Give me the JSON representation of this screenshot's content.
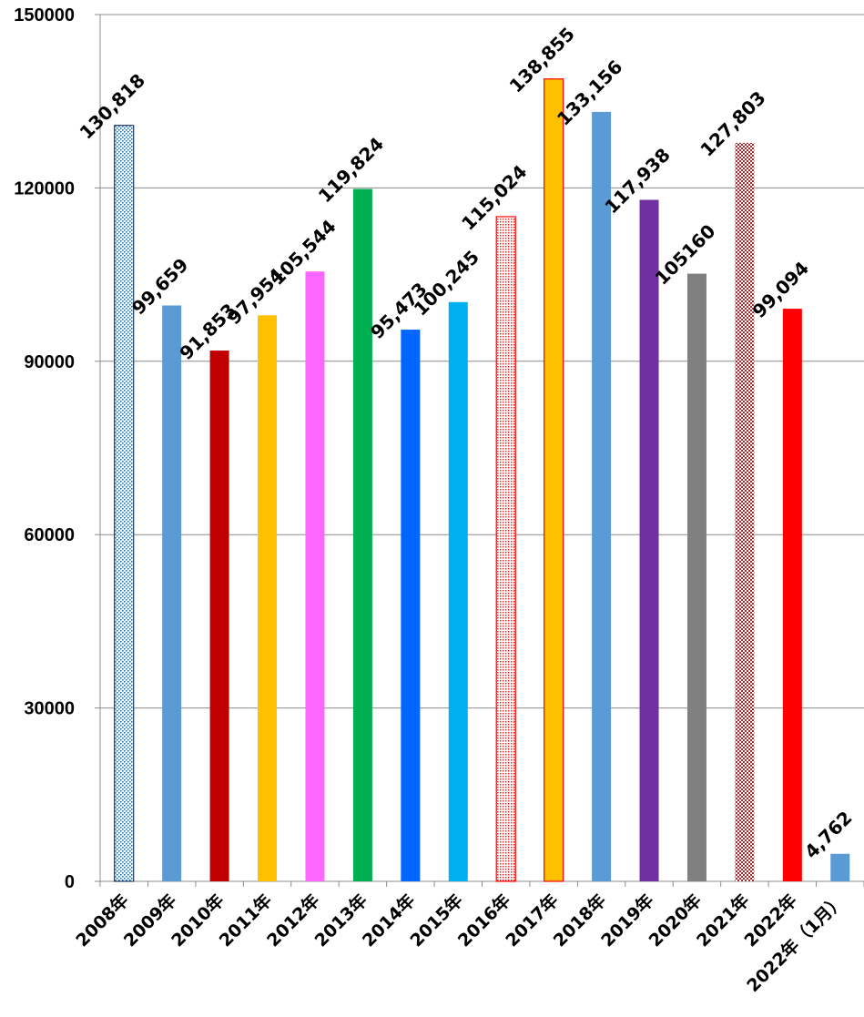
{
  "chart_data": {
    "type": "bar",
    "categories": [
      "2008年",
      "2009年",
      "2010年",
      "2011年",
      "2012年",
      "2013年",
      "2014年",
      "2015年",
      "2016年",
      "2017年",
      "2018年",
      "2019年",
      "2020年",
      "2021年",
      "2022年",
      "2022年（1月）"
    ],
    "values": [
      130818,
      99659,
      91853,
      97954,
      105544,
      119824,
      95473,
      100245,
      115024,
      138855,
      133156,
      117938,
      105160,
      127803,
      99094,
      4762
    ],
    "data_labels": [
      "130,818",
      "99,659",
      "91,853",
      "97,954",
      "105,544",
      "119,824",
      "95,473",
      "100,245",
      "115,024",
      "138,855",
      "133,156",
      "117,938",
      "105160",
      "127,803",
      "99,094",
      "4,762"
    ],
    "colors": [
      "#ffffff",
      "#5b9bd5",
      "#c00000",
      "#ffc000",
      "#ff66ff",
      "#00b050",
      "#0066ff",
      "#00b0f0",
      "#ffffff",
      "#ffc000",
      "#5b9bd5",
      "#7030a0",
      "#808080",
      "#c9a0a0",
      "#ff0000",
      "#5b9bd5"
    ],
    "patterns": [
      "dots-blue",
      "",
      "",
      "",
      "",
      "",
      "",
      "",
      "dots-red",
      "",
      "",
      "",
      "",
      "checker-maroon",
      "",
      ""
    ],
    "outlines": [
      "#1f3864",
      "",
      "",
      "",
      "",
      "",
      "",
      "",
      "#ff0000",
      "#ff0000",
      "",
      "",
      "",
      "",
      "",
      ""
    ],
    "title": "",
    "xlabel": "",
    "ylabel": "",
    "ylim": [
      0,
      150000
    ],
    "yticks": [
      0,
      30000,
      60000,
      90000,
      120000,
      150000
    ],
    "ytick_labels": [
      "0",
      "30000",
      "60000",
      "90000",
      "120000",
      "150000"
    ],
    "grid": true,
    "legend": "none"
  }
}
